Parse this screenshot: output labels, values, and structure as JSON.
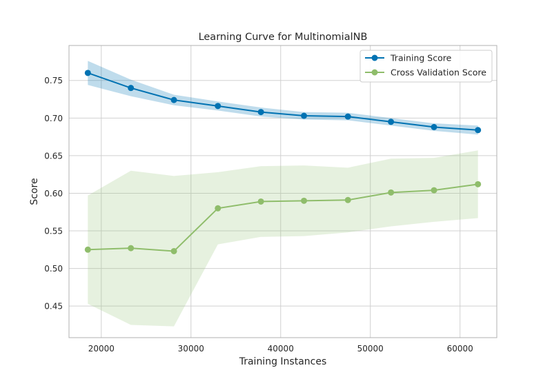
{
  "chart_data": {
    "type": "line",
    "title": "Learning Curve for MultinomialNB",
    "xlabel": "Training Instances",
    "ylabel": "Score",
    "xlim": [
      16400,
      64100
    ],
    "ylim": [
      0.408,
      0.7965
    ],
    "xticks": [
      20000,
      30000,
      40000,
      50000,
      60000
    ],
    "xtick_labels": [
      "20000",
      "30000",
      "40000",
      "50000",
      "60000"
    ],
    "yticks": [
      0.45,
      0.5,
      0.55,
      0.6,
      0.65,
      0.7,
      0.75
    ],
    "ytick_labels": [
      "0.45",
      "0.50",
      "0.55",
      "0.60",
      "0.65",
      "0.70",
      "0.75"
    ],
    "grid": true,
    "legend_position": "top-right",
    "x": [
      18500,
      23300,
      28100,
      33000,
      37800,
      42600,
      47500,
      52300,
      57100,
      62000
    ],
    "series": [
      {
        "name": "Training Score",
        "color": "#0072b2",
        "band_color": "#0072b2",
        "values": [
          0.76,
          0.74,
          0.724,
          0.716,
          0.708,
          0.703,
          0.702,
          0.695,
          0.688,
          0.684
        ],
        "band_upper": [
          0.776,
          0.751,
          0.731,
          0.722,
          0.714,
          0.708,
          0.707,
          0.7,
          0.693,
          0.69
        ],
        "band_lower": [
          0.744,
          0.729,
          0.717,
          0.71,
          0.702,
          0.698,
          0.697,
          0.69,
          0.683,
          0.678
        ]
      },
      {
        "name": "Cross Validation Score",
        "color": "#8fbd6b",
        "band_color": "#9dc67f",
        "values": [
          0.525,
          0.527,
          0.523,
          0.58,
          0.589,
          0.59,
          0.591,
          0.601,
          0.604,
          0.612
        ],
        "band_upper": [
          0.597,
          0.63,
          0.623,
          0.628,
          0.636,
          0.637,
          0.634,
          0.646,
          0.647,
          0.657
        ],
        "band_lower": [
          0.453,
          0.425,
          0.423,
          0.532,
          0.542,
          0.543,
          0.548,
          0.556,
          0.562,
          0.567
        ]
      }
    ]
  }
}
